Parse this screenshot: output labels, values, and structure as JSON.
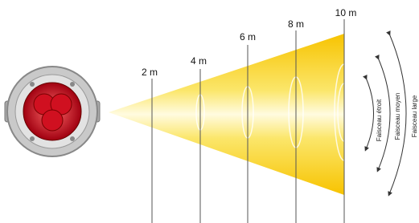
{
  "distances": [
    "2 m",
    "4 m",
    "6 m",
    "8 m",
    "10 m"
  ],
  "beams": [
    "Faisceau étroit",
    "Faisceau moyen",
    "Faisceau large"
  ]
}
